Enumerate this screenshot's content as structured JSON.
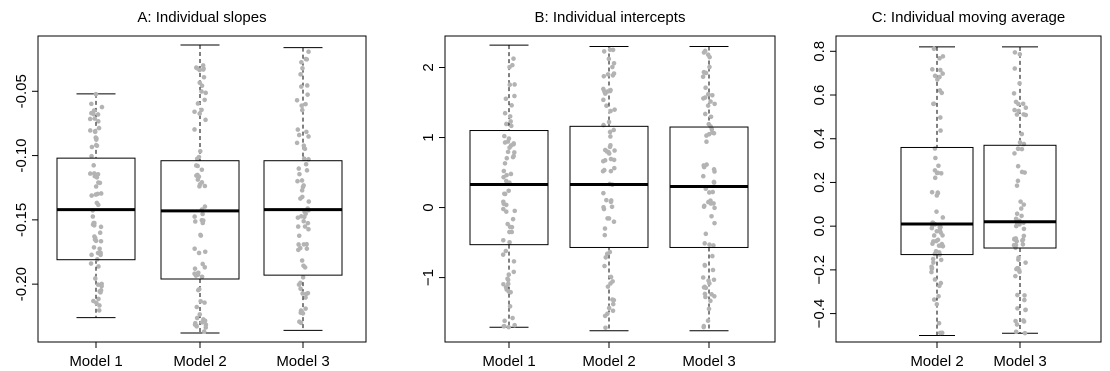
{
  "chart_data": [
    {
      "type": "boxplot",
      "title": "A: Individual slopes",
      "categories": [
        "Model 1",
        "Model 2",
        "Model 3"
      ],
      "ylim": [
        -0.245,
        -0.007
      ],
      "yticks": [
        -0.2,
        -0.15,
        -0.1,
        -0.05
      ],
      "ytick_labels": [
        "-0.20",
        "-0.15",
        "-0.10",
        "-0.05"
      ],
      "boxes": [
        {
          "min": -0.226,
          "q1": -0.181,
          "median": -0.142,
          "q3": -0.102,
          "max": -0.052
        },
        {
          "min": -0.238,
          "q1": -0.196,
          "median": -0.143,
          "q3": -0.104,
          "max": -0.014
        },
        {
          "min": -0.236,
          "q1": -0.193,
          "median": -0.142,
          "q3": -0.104,
          "max": -0.016
        }
      ],
      "points": "individual jittered observations (grey dots) overlaid on each box",
      "grid": false
    },
    {
      "type": "boxplot",
      "title": "B: Individual intercepts",
      "categories": [
        "Model 1",
        "Model 2",
        "Model 3"
      ],
      "ylim": [
        -1.92,
        2.45
      ],
      "yticks": [
        -1,
        0,
        1,
        2
      ],
      "ytick_labels": [
        "−1",
        "0",
        "1",
        "2"
      ],
      "boxes": [
        {
          "min": -1.71,
          "q1": -0.53,
          "median": 0.33,
          "q3": 1.1,
          "max": 2.32
        },
        {
          "min": -1.76,
          "q1": -0.57,
          "median": 0.33,
          "q3": 1.16,
          "max": 2.3
        },
        {
          "min": -1.76,
          "q1": -0.57,
          "median": 0.3,
          "q3": 1.15,
          "max": 2.3
        }
      ],
      "points": "individual jittered observations (grey dots) overlaid on each box",
      "grid": false
    },
    {
      "type": "boxplot",
      "title": "C: Individual moving average",
      "categories": [
        "Model 2",
        "Model 3"
      ],
      "ylim": [
        -0.53,
        0.87
      ],
      "yticks": [
        -0.4,
        -0.2,
        0.0,
        0.2,
        0.4,
        0.6,
        0.8
      ],
      "ytick_labels": [
        "−0.4",
        "−0.2",
        "0.0",
        "0.2",
        "0.4",
        "0.6",
        "0.8"
      ],
      "boxes": [
        {
          "min": -0.5,
          "q1": -0.13,
          "median": 0.01,
          "q3": 0.36,
          "max": 0.82
        },
        {
          "min": -0.49,
          "q1": -0.1,
          "median": 0.02,
          "q3": 0.37,
          "max": 0.82
        }
      ],
      "points": "individual jittered observations (grey dots) overlaid on each box",
      "grid": false
    }
  ],
  "colors": {
    "points": "#b3b3b3",
    "box_stroke": "#000000",
    "frame": "#000000"
  }
}
